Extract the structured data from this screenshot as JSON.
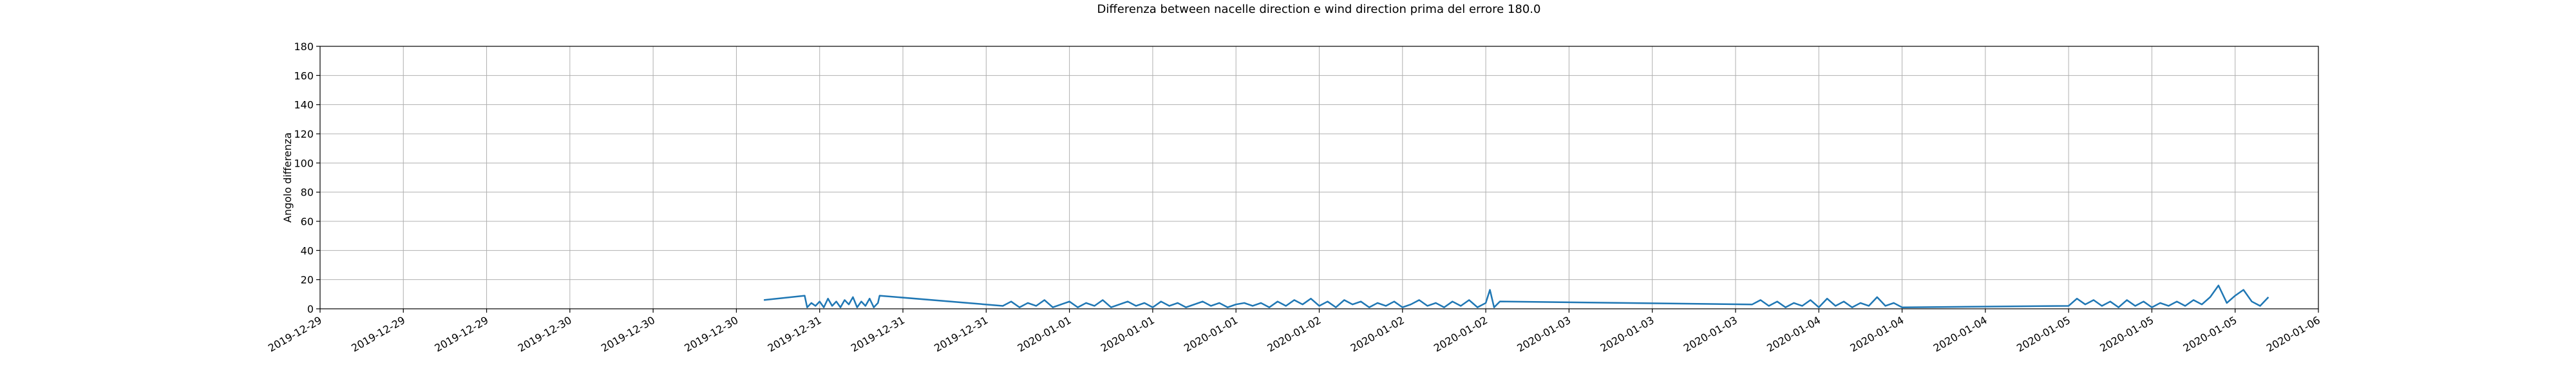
{
  "chart_data": {
    "type": "line",
    "title": "Differenza between nacelle direction e wind direction prima del errore 180.0",
    "y_label": "Angolo differenza",
    "color": "#1f77b4",
    "grid": true,
    "xlim": [
      0,
      24
    ],
    "xticks": [
      {
        "value": 0,
        "label": "2019-12-29"
      },
      {
        "value": 1,
        "label": "2019-12-29"
      },
      {
        "value": 2,
        "label": "2019-12-29"
      },
      {
        "value": 3,
        "label": "2019-12-30"
      },
      {
        "value": 4,
        "label": "2019-12-30"
      },
      {
        "value": 5,
        "label": "2019-12-30"
      },
      {
        "value": 6,
        "label": "2019-12-31"
      },
      {
        "value": 7,
        "label": "2019-12-31"
      },
      {
        "value": 8,
        "label": "2019-12-31"
      },
      {
        "value": 9,
        "label": "2020-01-01"
      },
      {
        "value": 10,
        "label": "2020-01-01"
      },
      {
        "value": 11,
        "label": "2020-01-01"
      },
      {
        "value": 12,
        "label": "2020-01-02"
      },
      {
        "value": 13,
        "label": "2020-01-02"
      },
      {
        "value": 14,
        "label": "2020-01-02"
      },
      {
        "value": 15,
        "label": "2020-01-03"
      },
      {
        "value": 16,
        "label": "2020-01-03"
      },
      {
        "value": 17,
        "label": "2020-01-03"
      },
      {
        "value": 18,
        "label": "2020-01-04"
      },
      {
        "value": 19,
        "label": "2020-01-04"
      },
      {
        "value": 20,
        "label": "2020-01-04"
      },
      {
        "value": 21,
        "label": "2020-01-05"
      },
      {
        "value": 22,
        "label": "2020-01-05"
      },
      {
        "value": 23,
        "label": "2020-01-05"
      },
      {
        "value": 24,
        "label": "2020-01-06"
      }
    ],
    "ylim": [
      0,
      180
    ],
    "yticks": [
      0,
      20,
      40,
      60,
      80,
      100,
      120,
      140,
      160,
      180
    ],
    "x": [
      5.33,
      5.82,
      5.85,
      5.9,
      5.95,
      6.0,
      6.05,
      6.1,
      6.15,
      6.2,
      6.25,
      6.3,
      6.35,
      6.4,
      6.45,
      6.5,
      6.55,
      6.6,
      6.65,
      6.7,
      6.72,
      8.2,
      8.3,
      8.4,
      8.5,
      8.6,
      8.7,
      8.8,
      8.9,
      9.0,
      9.1,
      9.2,
      9.3,
      9.4,
      9.5,
      9.6,
      9.7,
      9.8,
      9.9,
      10.0,
      10.1,
      10.2,
      10.3,
      10.4,
      10.5,
      10.6,
      10.7,
      10.8,
      10.9,
      11.0,
      11.1,
      11.2,
      11.3,
      11.4,
      11.5,
      11.6,
      11.7,
      11.8,
      11.9,
      12.0,
      12.1,
      12.2,
      12.3,
      12.4,
      12.5,
      12.6,
      12.7,
      12.8,
      12.9,
      13.0,
      13.1,
      13.2,
      13.3,
      13.4,
      13.5,
      13.6,
      13.7,
      13.8,
      13.9,
      14.0,
      14.05,
      14.1,
      14.17,
      17.2,
      17.3,
      17.4,
      17.5,
      17.6,
      17.7,
      17.8,
      17.9,
      18.0,
      18.1,
      18.2,
      18.3,
      18.4,
      18.5,
      18.6,
      18.7,
      18.8,
      18.9,
      19.0,
      21.0,
      21.1,
      21.2,
      21.3,
      21.4,
      21.5,
      21.6,
      21.7,
      21.8,
      21.9,
      22.0,
      22.1,
      22.2,
      22.3,
      22.4,
      22.5,
      22.6,
      22.7,
      22.8,
      22.9,
      23.0,
      23.1,
      23.2,
      23.3,
      23.4
    ],
    "values": [
      6,
      9,
      1,
      4,
      2,
      5,
      1,
      7,
      2,
      5,
      1,
      6,
      3,
      8,
      1,
      5,
      2,
      7,
      1,
      4,
      9,
      2,
      5,
      1,
      4,
      2,
      6,
      1,
      3,
      5,
      1,
      4,
      2,
      6,
      1,
      3,
      5,
      2,
      4,
      1,
      5,
      2,
      4,
      1,
      3,
      5,
      2,
      4,
      1,
      3,
      4,
      2,
      4,
      1,
      5,
      2,
      6,
      3,
      7,
      2,
      5,
      1,
      6,
      3,
      5,
      1,
      4,
      2,
      5,
      1,
      3,
      6,
      2,
      4,
      1,
      5,
      2,
      6,
      1,
      4,
      13,
      1,
      5,
      3,
      6,
      2,
      5,
      1,
      4,
      2,
      6,
      1,
      7,
      2,
      5,
      1,
      4,
      2,
      8,
      2,
      4,
      1,
      2,
      7,
      3,
      6,
      2,
      5,
      1,
      6,
      2,
      5,
      1,
      4,
      2,
      5,
      2,
      6,
      3,
      8,
      16,
      4,
      9,
      13,
      5,
      2,
      8
    ]
  }
}
